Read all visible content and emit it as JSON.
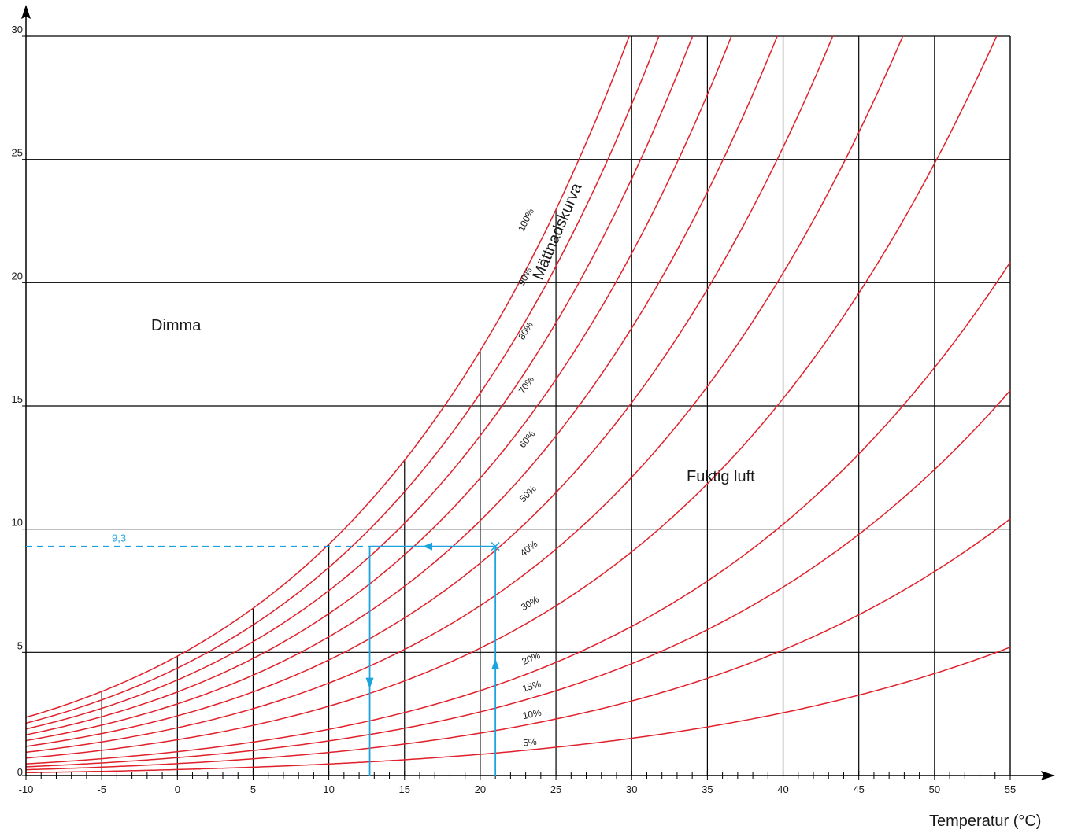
{
  "colors": {
    "curve": "#e0202a",
    "grid": "#000000",
    "annotation": "#1aa3de",
    "text": "#1a1a1a"
  },
  "chart_data": {
    "type": "line",
    "xlabel": "Temperatur (°C)",
    "ylabel": "",
    "xlim": [
      -10,
      55
    ],
    "ylim": [
      0,
      30
    ],
    "x_ticks": [
      "-10",
      "-5",
      "0",
      "5",
      "10",
      "15",
      "20",
      "25",
      "30",
      "35",
      "40",
      "45",
      "50",
      "55"
    ],
    "y_ticks": [
      "0",
      "5",
      "10",
      "15",
      "20",
      "25",
      "30"
    ],
    "grid": "horizontal lines at 5-unit steps; vertical lines at 5 °C steps drawn up to the saturation curve",
    "saturation_label": "Mättnadskurva",
    "region_labels": {
      "fog": "Dimma",
      "humid_air": "Fuktig luft"
    },
    "series": [
      {
        "name": "100%",
        "rh": 100
      },
      {
        "name": "90%",
        "rh": 90
      },
      {
        "name": "80%",
        "rh": 80
      },
      {
        "name": "70%",
        "rh": 70
      },
      {
        "name": "60%",
        "rh": 60
      },
      {
        "name": "50%",
        "rh": 50
      },
      {
        "name": "40%",
        "rh": 40
      },
      {
        "name": "30%",
        "rh": 30
      },
      {
        "name": "20%",
        "rh": 20
      },
      {
        "name": "15%",
        "rh": 15
      },
      {
        "name": "10%",
        "rh": 10
      },
      {
        "name": "5%",
        "rh": 5
      }
    ],
    "example": {
      "value_label": "9,3",
      "value": 9.3,
      "start_temperature": 21,
      "dew_point": 12.7,
      "crossing_temperature": 16
    }
  }
}
